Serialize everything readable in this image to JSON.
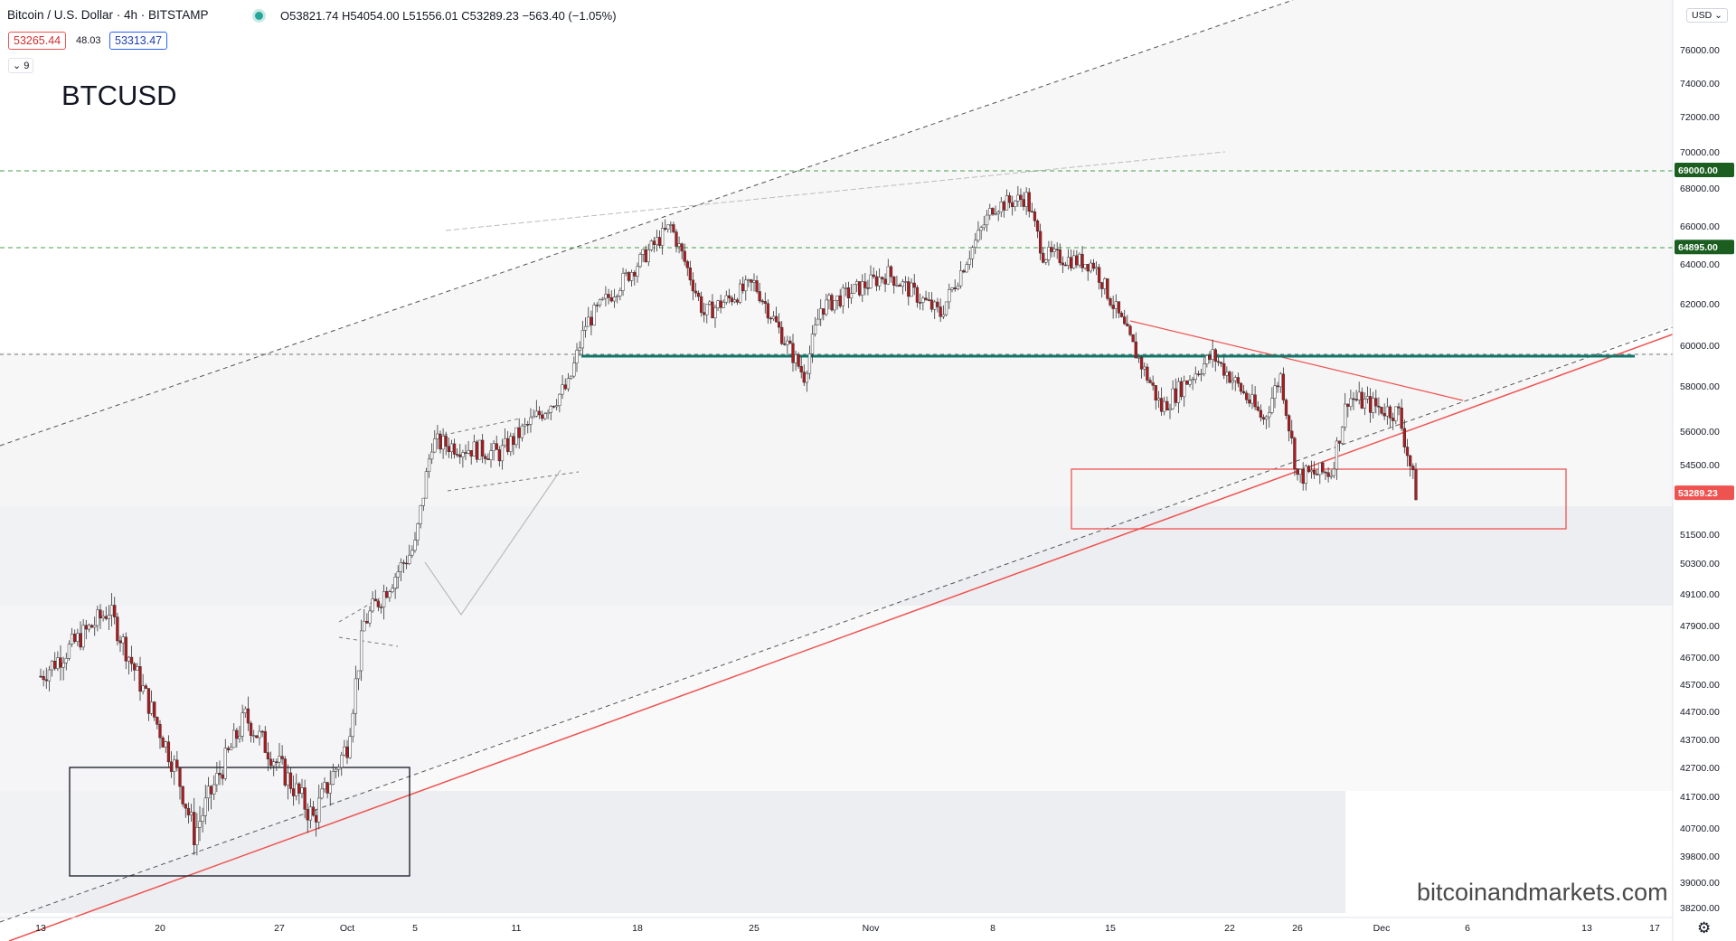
{
  "header": {
    "symbol": "Bitcoin / U.S. Dollar · 4h · BITSTAMP",
    "ohlc": "O53821.74 H54054.00 L51556.01 C53289.23 −563.40 (−1.05%)",
    "bid": "53265.44",
    "spread": "48.03",
    "ask": "53313.47",
    "indicator_count": "9",
    "currency": "USD"
  },
  "overlay_title": "BTCUSD",
  "watermark": "bitcoinandmarkets.com",
  "icons": {
    "status": "market-open-dot-icon",
    "settings": "gear-icon",
    "collapse": "chevron-down-icon"
  },
  "colors": {
    "up": "#ffffff",
    "down": "#b2191e",
    "red_line": "#ef5350",
    "teal": "#10786a",
    "green_level": "#43a047"
  },
  "chart_data": {
    "type": "candlestick",
    "title": "BTCUSD",
    "ylim": [
      38200,
      76000
    ],
    "y_ticks": [
      "76000.00",
      "74000.00",
      "72000.00",
      "70000.00",
      "68000.00",
      "66000.00",
      "64000.00",
      "62000.00",
      "60000.00",
      "58000.00",
      "56000.00",
      "54500.00",
      "51500.00",
      "50300.00",
      "49100.00",
      "47900.00",
      "46700.00",
      "45700.00",
      "44700.00",
      "43700.00",
      "42700.00",
      "41700.00",
      "40700.00",
      "39800.00",
      "39000.00",
      "38200.00"
    ],
    "x_ticks": [
      "13",
      "20",
      "27",
      "Oct",
      "5",
      "11",
      "18",
      "25",
      "Nov",
      "8",
      "15",
      "22",
      "26",
      "Dec",
      "6",
      "13",
      "17"
    ],
    "price_labels": [
      {
        "value": "69000.00",
        "color": "#1b5e20"
      },
      {
        "value": "64895.00",
        "color": "#1b5e20"
      },
      {
        "value": "53289.23",
        "color": "#ef5350"
      }
    ],
    "key_points": [
      {
        "date": "Sep 13",
        "price": 46000
      },
      {
        "date": "Sep 17",
        "price": 48500
      },
      {
        "date": "Sep 21",
        "price": 42500
      },
      {
        "date": "Sep 22",
        "price": 40500
      },
      {
        "date": "Sep 25",
        "price": 44500
      },
      {
        "date": "Sep 29",
        "price": 41000
      },
      {
        "date": "Oct 1",
        "price": 43500
      },
      {
        "date": "Oct 2",
        "price": 48000
      },
      {
        "date": "Oct 5",
        "price": 51000
      },
      {
        "date": "Oct 6",
        "price": 55500
      },
      {
        "date": "Oct 10",
        "price": 55000
      },
      {
        "date": "Oct 14",
        "price": 58000
      },
      {
        "date": "Oct 15",
        "price": 61000
      },
      {
        "date": "Oct 20",
        "price": 66000
      },
      {
        "date": "Oct 22",
        "price": 61500
      },
      {
        "date": "Oct 25",
        "price": 63000
      },
      {
        "date": "Oct 28",
        "price": 58500
      },
      {
        "date": "Oct 29",
        "price": 61800
      },
      {
        "date": "Nov 2",
        "price": 63500
      },
      {
        "date": "Nov 5",
        "price": 61500
      },
      {
        "date": "Nov 8",
        "price": 67000
      },
      {
        "date": "Nov 10",
        "price": 67500
      },
      {
        "date": "Nov 11",
        "price": 64500
      },
      {
        "date": "Nov 14",
        "price": 64000
      },
      {
        "date": "Nov 16",
        "price": 60500
      },
      {
        "date": "Nov 18",
        "price": 57000
      },
      {
        "date": "Nov 21",
        "price": 59500
      },
      {
        "date": "Nov 24",
        "price": 56500
      },
      {
        "date": "Nov 25",
        "price": 58500
      },
      {
        "date": "Nov 26",
        "price": 54000
      },
      {
        "date": "Nov 28",
        "price": 54200
      },
      {
        "date": "Nov 29",
        "price": 57500
      },
      {
        "date": "Dec 1",
        "price": 57000
      },
      {
        "date": "Dec 2",
        "price": 56800
      },
      {
        "date": "Dec 3",
        "price": 53289
      }
    ],
    "horizontal_levels": [
      69000,
      64895,
      59300
    ],
    "grid": false,
    "legend": "none"
  }
}
